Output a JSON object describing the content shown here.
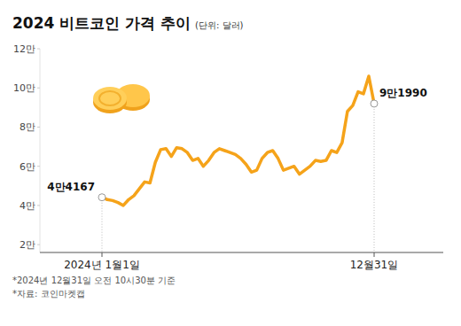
{
  "chart_data": {
    "type": "line",
    "title": "2024 비트코인 가격 추이",
    "subtitle": "(단위: 달러)",
    "notes": [
      "*2024년 12월31일 오전 10시30분 기준",
      "*자료: 코인마켓캡"
    ],
    "categories": [
      "2024년 1월1일",
      null,
      null,
      null,
      null,
      null,
      null,
      null,
      null,
      null,
      null,
      null,
      null,
      null,
      null,
      null,
      null,
      null,
      null,
      null,
      null,
      null,
      null,
      null,
      null,
      null,
      null,
      null,
      null,
      null,
      null,
      null,
      null,
      null,
      null,
      null,
      null,
      null,
      null,
      null,
      null,
      null,
      null,
      null,
      null,
      null,
      null,
      null,
      null,
      null,
      null,
      "12월31일"
    ],
    "values": [
      44167,
      43000,
      42500,
      41500,
      40000,
      43000,
      45000,
      48500,
      52000,
      51500,
      62000,
      68500,
      69000,
      65000,
      69500,
      69000,
      67000,
      63000,
      64000,
      60000,
      63000,
      67000,
      69000,
      68000,
      67000,
      66000,
      64000,
      61000,
      57000,
      58000,
      64000,
      67000,
      68000,
      64000,
      58000,
      59000,
      60000,
      56000,
      58000,
      60000,
      63000,
      62500,
      63000,
      68000,
      67000,
      72000,
      88000,
      91000,
      98000,
      97000,
      106000,
      91990
    ],
    "value_labels": [
      "4만4167",
      null,
      null,
      null,
      null,
      null,
      null,
      null,
      null,
      null,
      null,
      null,
      null,
      null,
      null,
      null,
      null,
      null,
      null,
      null,
      null,
      null,
      null,
      null,
      null,
      null,
      null,
      null,
      null,
      null,
      null,
      null,
      null,
      null,
      null,
      null,
      null,
      null,
      null,
      null,
      null,
      null,
      null,
      null,
      null,
      null,
      null,
      null,
      null,
      null,
      null,
      "9만1990"
    ],
    "data_labels": true,
    "color": "#f5a31a",
    "ylim": [
      16000,
      120000
    ],
    "yticks": [
      {
        "value": 20000,
        "label": "2만"
      },
      {
        "value": 40000,
        "label": "4만"
      },
      {
        "value": 60000,
        "label": "6만"
      },
      {
        "value": 80000,
        "label": "8만"
      },
      {
        "value": 100000,
        "label": "10만"
      },
      {
        "value": 120000,
        "label": "12만"
      }
    ],
    "grid": false
  }
}
